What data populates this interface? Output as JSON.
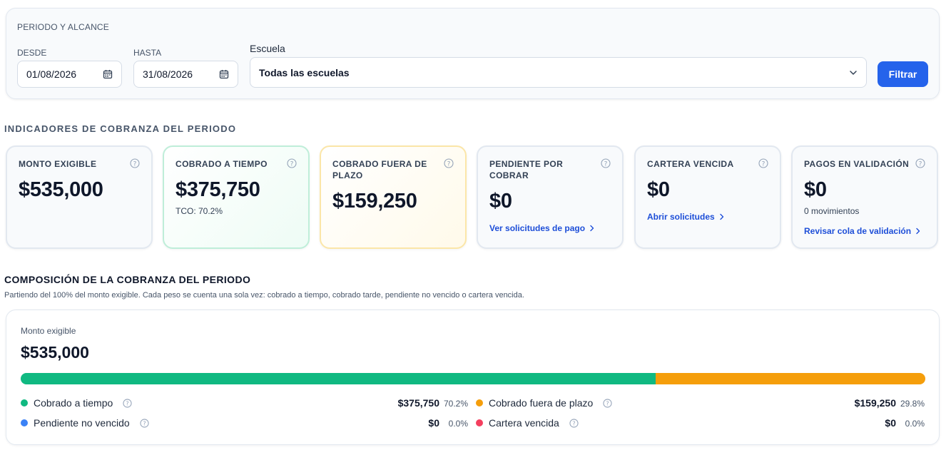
{
  "filters": {
    "title": "PERIODO Y ALCANCE",
    "from_label": "DESDE",
    "from_value": "01/08/2026",
    "to_label": "HASTA",
    "to_value": "31/08/2026",
    "school_label": "Escuela",
    "school_value": "Todas las escuelas",
    "filter_button": "Filtrar"
  },
  "indicators": {
    "section_title": "INDICADORES DE COBRANZA DEL PERIODO",
    "cards": [
      {
        "label": "MONTO EXIGIBLE",
        "value": "$535,000"
      },
      {
        "label": "COBRADO A TIEMPO",
        "value": "$375,750",
        "sub": "TCO: 70.2%"
      },
      {
        "label": "COBRADO FUERA DE PLAZO",
        "value": "$159,250"
      },
      {
        "label": "PENDIENTE POR COBRAR",
        "value": "$0",
        "link": "Ver solicitudes de pago"
      },
      {
        "label": "CARTERA VENCIDA",
        "value": "$0",
        "link": "Abrir solicitudes"
      },
      {
        "label": "PAGOS EN VALIDACIÓN",
        "value": "$0",
        "sub": "0 movimientos",
        "link": "Revisar cola de validación"
      }
    ]
  },
  "composition": {
    "title": "COMPOSICIÓN DE LA COBRANZA DEL PERIODO",
    "description": "Partiendo del 100% del monto exigible. Cada peso se cuenta una sola vez: cobrado a tiempo, cobrado tarde, pendiente no vencido o cartera vencida.",
    "total_label": "Monto exigible",
    "total_value": "$535,000",
    "bar_shares": [
      0.702,
      0.298,
      0.0,
      0.0
    ],
    "legend": [
      {
        "label": "Cobrado a tiempo",
        "amount": "$375,750",
        "pct": "70.2%",
        "color": "#10b981"
      },
      {
        "label": "Cobrado fuera de plazo",
        "amount": "$159,250",
        "pct": "29.8%",
        "color": "#f59e0b"
      },
      {
        "label": "Pendiente no vencido",
        "amount": "$0",
        "pct": "0.0%",
        "color": "#3b82f6"
      },
      {
        "label": "Cartera vencida",
        "amount": "$0",
        "pct": "0.0%",
        "color": "#f43f5e"
      }
    ]
  },
  "colors": {
    "primary": "#2563eb",
    "link": "#1d4ed8",
    "green": "#10b981",
    "orange": "#f59e0b"
  },
  "icons": [
    "calendar-icon",
    "chevron-down-icon",
    "help-icon",
    "chevron-right-icon"
  ]
}
